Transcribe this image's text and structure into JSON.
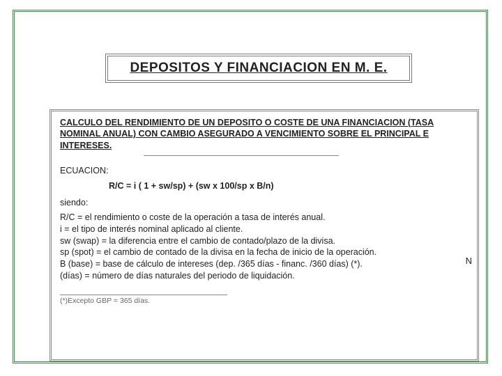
{
  "title": "DEPOSITOS Y FINANCIACION  EN M. E.",
  "intro": "CALCULO DEL RENDIMIENTO DE UN DEPOSITO O COSTE DE UNA FINANCIACION (TASA NOMINAL ANUAL) CON CAMBIO ASEGURADO A VENCIMIENTO SOBRE EL PRINCIPAL E INTERESES.",
  "equation_label": "ECUACION:",
  "equation": "R/C = i ( 1 + sw/sp) + (sw x 100/sp x B/n)",
  "siendo": "siendo:",
  "defs": {
    "d1": "R/C = el rendimiento o coste de la operación a tasa de interés anual.",
    "d2": "i        =  el tipo de interés nominal aplicado al cliente.",
    "d3": "sw (swap) = la diferencia entre el cambio de contado/plazo de la divisa.",
    "d4": "sp  (spot)  = el cambio de contado de la divisa en la fecha de inicio de la operación.",
    "d5": "B (base) = base de cálculo de intereses (dep. /365 días - financ. /360 días) (*).",
    "d6": "(días) = número de días naturales del periodo de liquidación."
  },
  "n_letter": "N",
  "footnote": "(*)Excepto GBP = 365 días.",
  "colors": {
    "frame_green": "#2d9b3a",
    "frame_gray": "#888888",
    "text": "#222222",
    "footnote_text": "#666666",
    "background": "#ffffff"
  }
}
